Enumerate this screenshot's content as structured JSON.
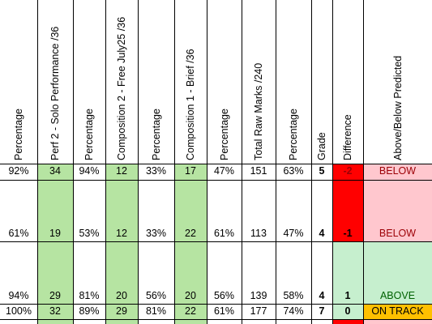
{
  "colors": {
    "green": "#b6e4a2",
    "red": "#ff0000",
    "pink": "#ffc7ce",
    "lightgreen": "#c6efce",
    "orange": "#ffc000",
    "light_green_diff": "#c6efce",
    "text_red": "#9c0006"
  },
  "headers": [
    "Percentage",
    "Perf 2 - Solo Performance /36",
    "Percentage",
    "Composition 2 - Free July25 /36",
    "Percentage",
    "Composition 1 - Brief /36",
    "Percentage",
    "Total Raw Marks /240",
    "Percentage",
    "Grade",
    "Difference",
    "Above/Below Predicted"
  ],
  "rows": [
    [
      "92%",
      "34",
      "94%",
      "12",
      "33%",
      "17",
      "47%",
      "151",
      "63%",
      "5",
      "-2",
      "BELOW"
    ],
    [
      "61%",
      "19",
      "53%",
      "12",
      "33%",
      "22",
      "61%",
      "113",
      "47%",
      "4",
      "-1",
      "BELOW"
    ],
    [
      "94%",
      "29",
      "81%",
      "20",
      "56%",
      "20",
      "56%",
      "139",
      "58%",
      "4",
      "1",
      "ABOVE"
    ],
    [
      "100%",
      "32",
      "89%",
      "29",
      "81%",
      "22",
      "61%",
      "177",
      "74%",
      "7",
      "0",
      "ON TRACK"
    ]
  ]
}
